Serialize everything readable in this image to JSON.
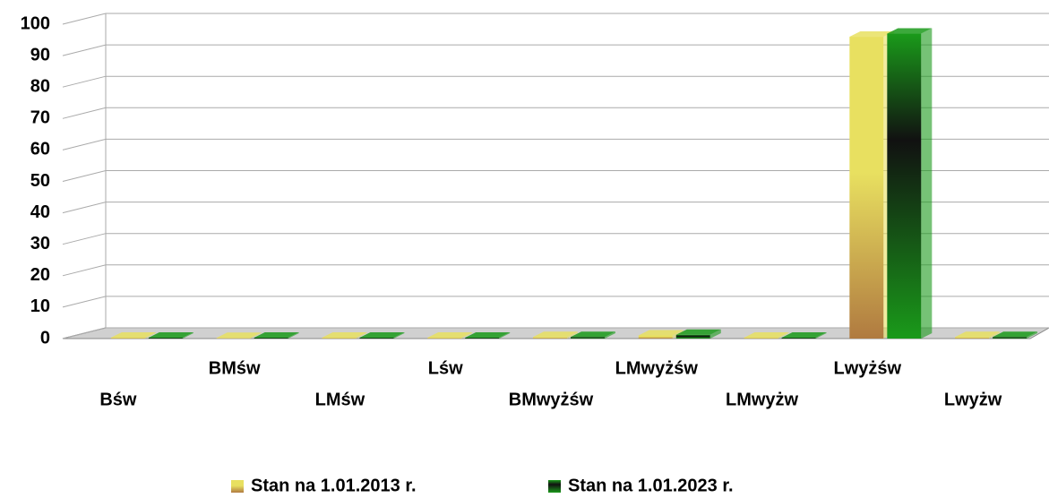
{
  "chart_data": {
    "type": "bar",
    "categories": [
      "Bśw",
      "BMśw",
      "LMśw",
      "Lśw",
      "BMwyżśw",
      "LMwyżśw",
      "LMwyżw",
      "Lwyżśw",
      "Lwyżw"
    ],
    "series": [
      {
        "name": "Stan na 1.01.2013 r.",
        "color": "#e8e060",
        "values": [
          0.3,
          0.2,
          0.3,
          0.3,
          0.5,
          1,
          0.3,
          96,
          0.5
        ]
      },
      {
        "name": "Stan na 1.01.2023 r.",
        "color": "#1a9a1a",
        "values": [
          0.3,
          0.3,
          0.3,
          0.3,
          0.5,
          1.2,
          0.3,
          97,
          0.5
        ]
      }
    ],
    "ylim": [
      0,
      100
    ],
    "yticks": [
      0,
      10,
      20,
      30,
      40,
      50,
      60,
      70,
      80,
      90,
      100
    ],
    "grid": true,
    "legend": "bottom"
  }
}
